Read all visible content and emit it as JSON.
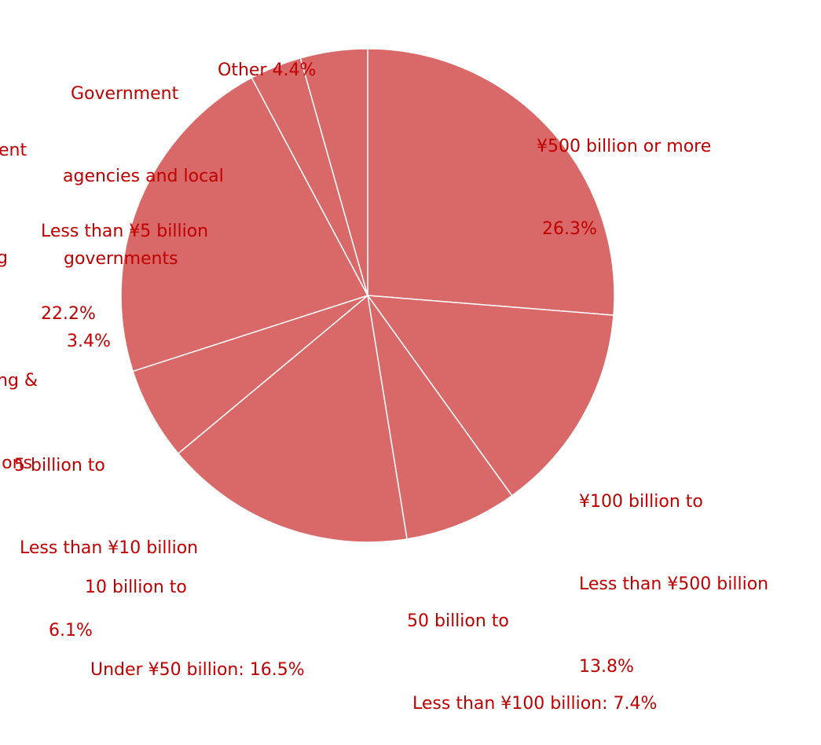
{
  "chart_data": {
    "type": "pie",
    "slice_color": "#d96868",
    "separator_color": "#ffffff",
    "label_color": "#c00000",
    "slices": [
      {
        "key": "s500",
        "value": 26.3,
        "lines": [
          "¥500 billion or more",
          " 26.3%"
        ]
      },
      {
        "key": "s100",
        "value": 13.8,
        "lines": [
          "¥100 billion to",
          "Less than ¥500 billion",
          "13.8%"
        ]
      },
      {
        "key": "s50",
        "value": 7.4,
        "lines": [
          "50 billion to",
          " Less than ¥100 billion: 7.4%"
        ]
      },
      {
        "key": "s10",
        "value": 16.5,
        "lines": [
          "10 billion to",
          " Under ¥50 billion: 16.5%"
        ]
      },
      {
        "key": "s5",
        "value": 6.1,
        "lines": [
          "5 billion to",
          " Less than ¥10 billion",
          "6.1%"
        ]
      },
      {
        "key": "slt5",
        "value": 22.2,
        "lines": [
          "Less than ¥5 billion",
          "22.2%"
        ]
      },
      {
        "key": "sgov",
        "value": 3.4,
        "lines": [
          "Government",
          "agencies and local",
          "governments",
          " 3.4%"
        ]
      },
      {
        "key": "sother",
        "value": 4.4,
        "lines": [
          "Other 4.4%"
        ]
      }
    ],
    "partial_labels": [
      {
        "key": "p1",
        "lines": [
          "ent"
        ]
      },
      {
        "key": "p2",
        "lines": [
          "g"
        ]
      },
      {
        "key": "p3",
        "lines": [
          "ng &",
          "ions"
        ]
      }
    ]
  }
}
